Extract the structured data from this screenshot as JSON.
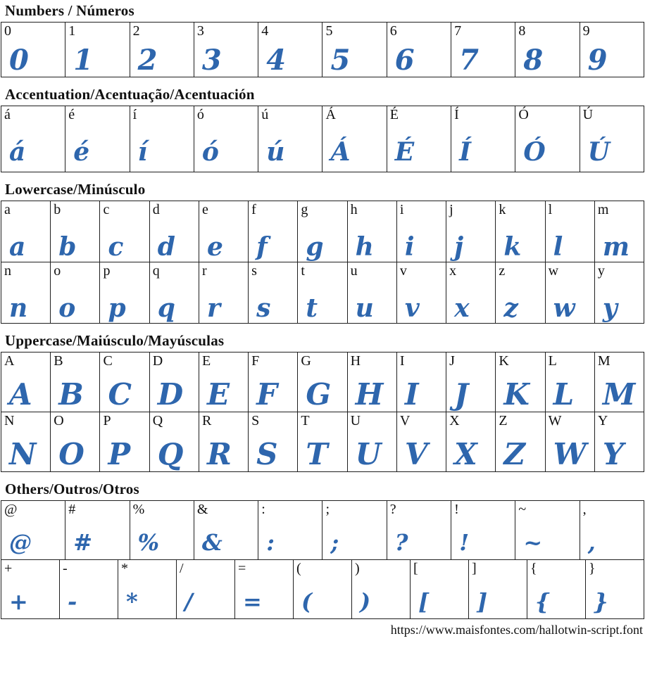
{
  "page": {
    "glyph_color": "#2e66ad",
    "footer_url": "https://www.maisfontes.com/hallotwin-script.font"
  },
  "sections": [
    {
      "id": "numbers",
      "title": "Numbers / Números",
      "rows": [
        [
          "0",
          "1",
          "2",
          "3",
          "4",
          "5",
          "6",
          "7",
          "8",
          "9"
        ]
      ]
    },
    {
      "id": "accentuation",
      "title": "Accentuation/Acentuação/Acentuación",
      "rows": [
        [
          "á",
          "é",
          "í",
          "ó",
          "ú",
          "Á",
          "É",
          "Í",
          "Ó",
          "Ú"
        ]
      ]
    },
    {
      "id": "lowercase",
      "title": "Lowercase/Minúsculo",
      "rows": [
        [
          "a",
          "b",
          "c",
          "d",
          "e",
          "f",
          "g",
          "h",
          "i",
          "j",
          "k",
          "l",
          "m"
        ],
        [
          "n",
          "o",
          "p",
          "q",
          "r",
          "s",
          "t",
          "u",
          "v",
          "x",
          "z",
          "w",
          "y"
        ]
      ]
    },
    {
      "id": "uppercase",
      "title": "Uppercase/Maiúsculo/Mayúsculas",
      "rows": [
        [
          "A",
          "B",
          "C",
          "D",
          "E",
          "F",
          "G",
          "H",
          "I",
          "J",
          "K",
          "L",
          "M"
        ],
        [
          "N",
          "O",
          "P",
          "Q",
          "R",
          "S",
          "T",
          "U",
          "V",
          "X",
          "Z",
          "W",
          "Y"
        ]
      ]
    },
    {
      "id": "others",
      "title": "Others/Outros/Otros",
      "rows": [
        [
          "@",
          "#",
          "%",
          "&",
          ":",
          ";",
          "?",
          "!",
          "~",
          ","
        ],
        [
          "+",
          "-",
          "*",
          "/",
          "=",
          "(",
          ")",
          "[",
          "]",
          "{",
          "}"
        ]
      ]
    }
  ]
}
